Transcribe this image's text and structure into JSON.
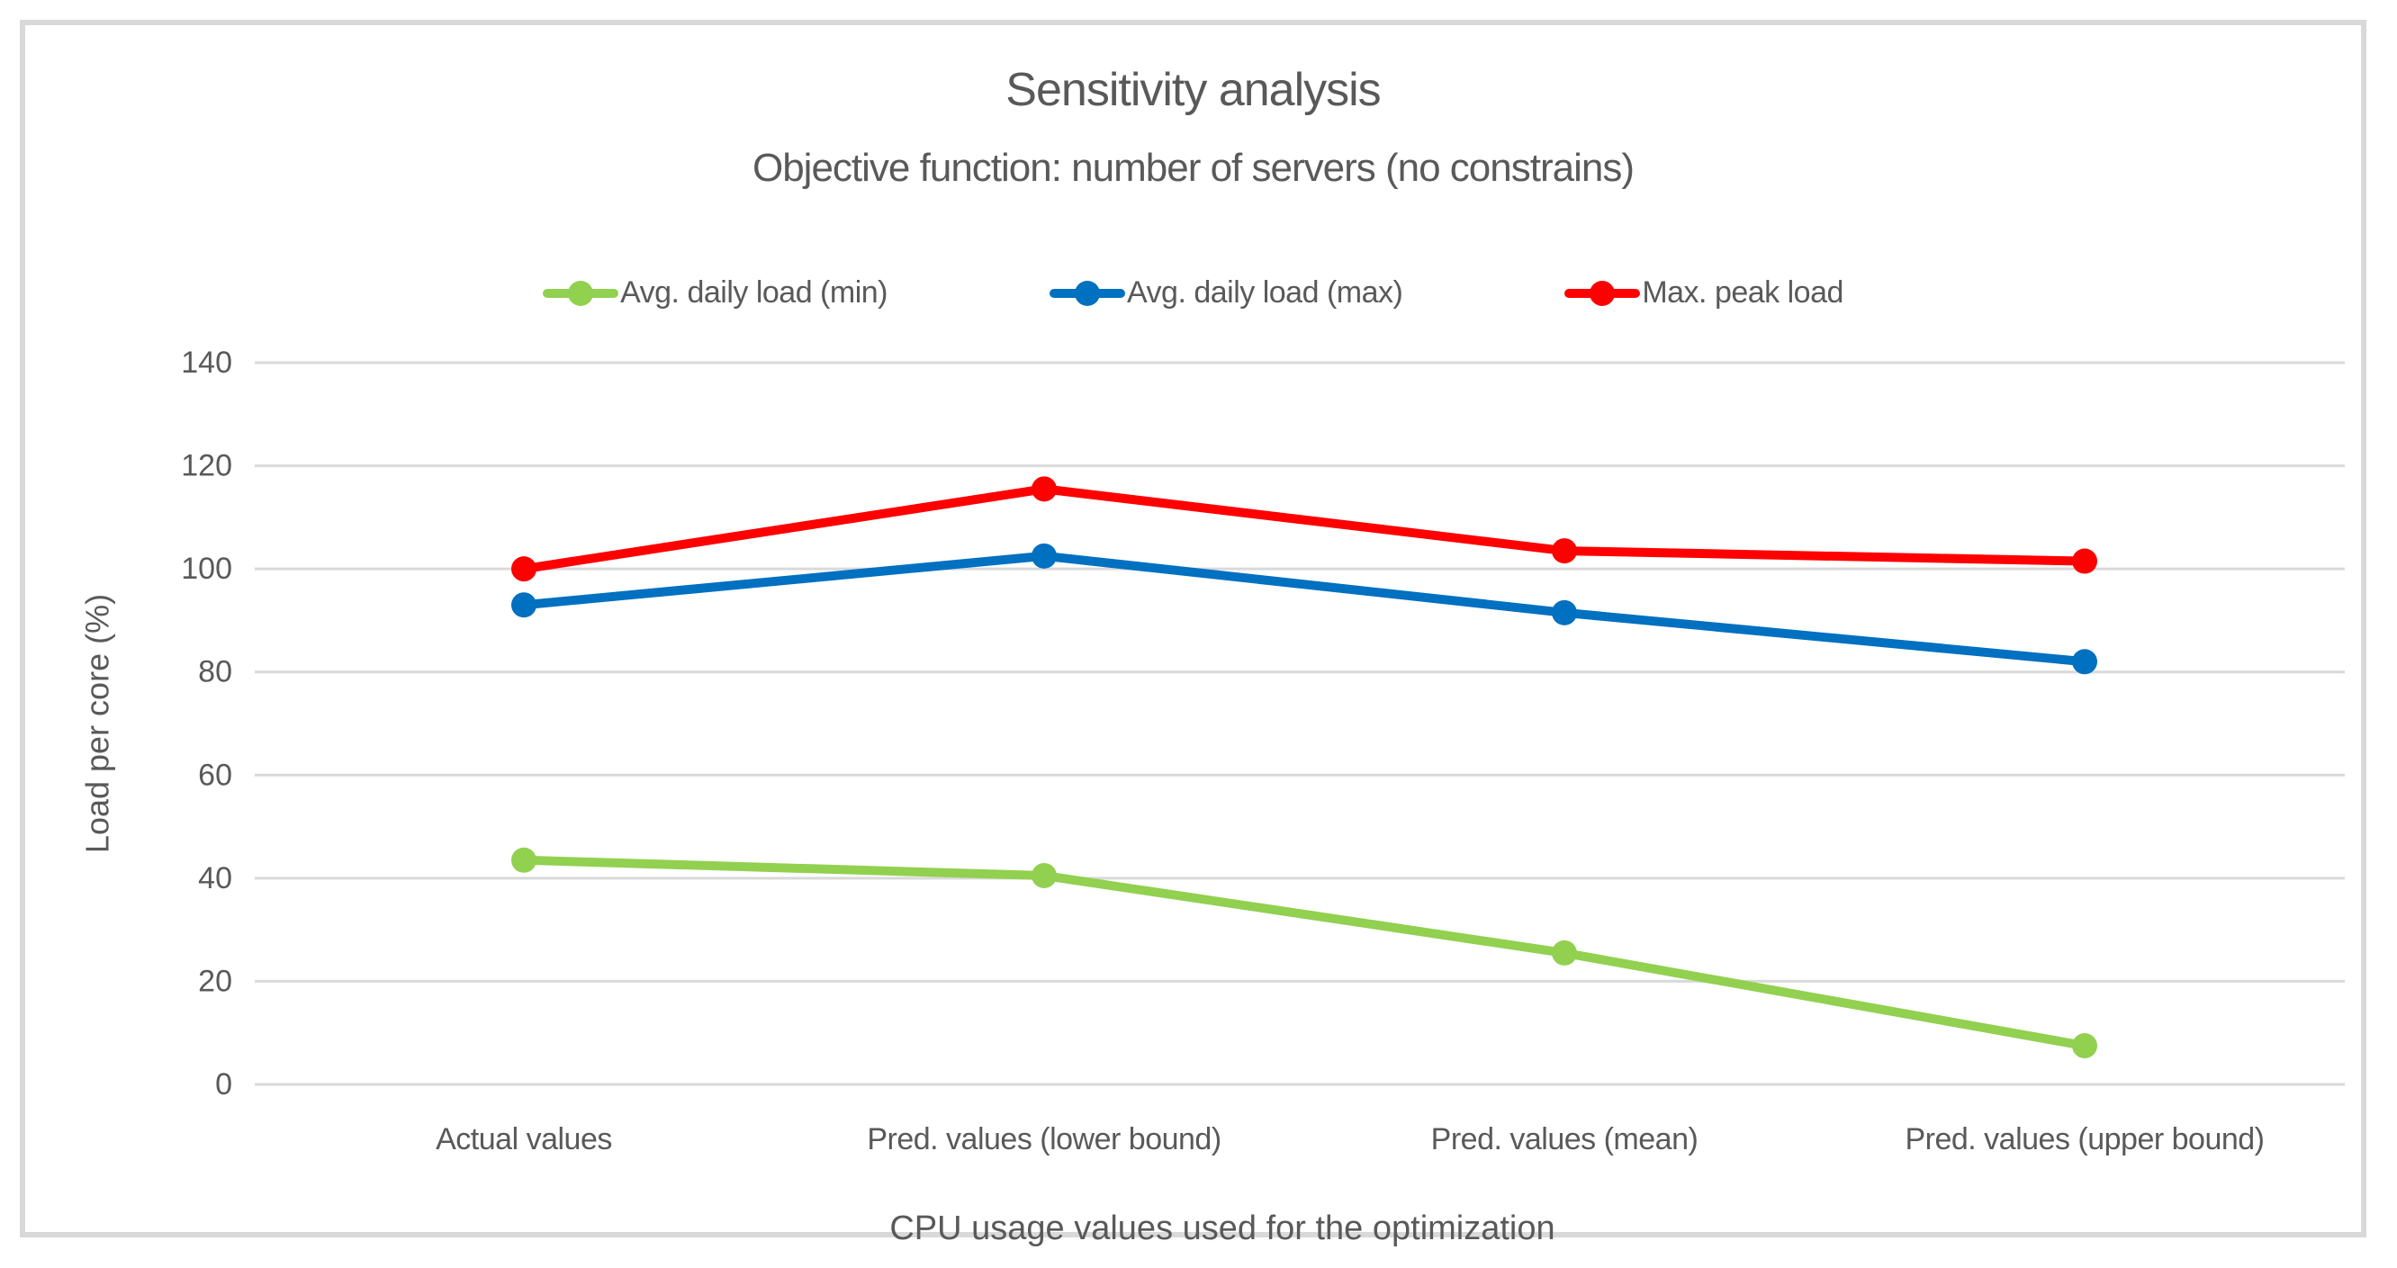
{
  "title": "Sensitivity analysis",
  "subtitle": "Objective function: number of servers (no constrains)",
  "chart_data": {
    "type": "line",
    "categories": [
      "Actual values",
      "Pred. values (lower bound)",
      "Pred. values (mean)",
      "Pred. values (upper bound)"
    ],
    "series": [
      {
        "name": "Avg. daily load (min)",
        "color": "#92D050",
        "values": [
          43.5,
          40.5,
          25.5,
          7.5
        ]
      },
      {
        "name": "Avg. daily load (max)",
        "color": "#0070C0",
        "values": [
          93,
          102.5,
          91.5,
          82
        ]
      },
      {
        "name": "Max. peak load",
        "color": "#FF0000",
        "values": [
          100,
          115.5,
          103.5,
          101.5
        ]
      }
    ],
    "xlabel": "CPU usage values used for the optimization",
    "ylabel": "Load per core (%)",
    "ylim": [
      0,
      140
    ],
    "ytick_step": 20,
    "yticks": [
      0,
      20,
      40,
      60,
      80,
      100,
      120,
      140
    ],
    "grid": true,
    "legend_position": "top",
    "marker": "circle"
  },
  "colors": {
    "text": "#595959",
    "gridline": "#D9D9D9",
    "frame_border": "#D9D9D9",
    "background": "#FFFFFF"
  }
}
